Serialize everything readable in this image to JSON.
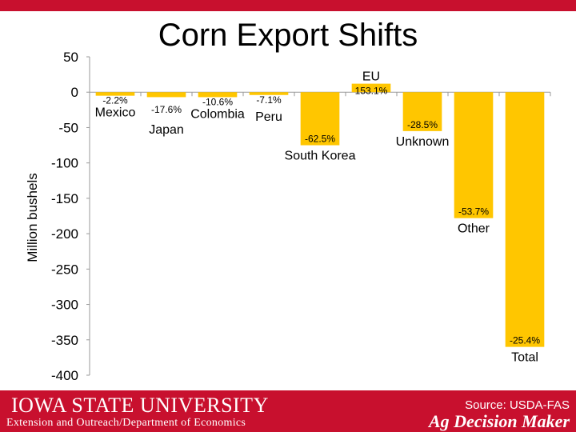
{
  "slide": {
    "title": "Corn Export Shifts"
  },
  "footer": {
    "university": "IOWA STATE UNIVERSITY",
    "department": "Extension and Outreach/Department of Economics",
    "source": "Source: USDA-FAS",
    "brand": "Ag Decision Maker"
  },
  "colors": {
    "bar": "#ffc600",
    "accent": "#c8102e",
    "axis": "#999999"
  },
  "chart_data": {
    "type": "bar",
    "ylabel": "Million bushels",
    "ylim": [
      -400,
      50
    ],
    "yticks": [
      50,
      0,
      -50,
      -100,
      -150,
      -200,
      -250,
      -300,
      -350,
      -400
    ],
    "categories": [
      "Mexico",
      "Japan",
      "Colombia",
      "Peru",
      "South Korea",
      "EU",
      "Unknown",
      "Other",
      "Total"
    ],
    "values": [
      -5,
      -7,
      -7,
      -4,
      -75,
      12,
      -55,
      -178,
      -360
    ],
    "data_labels": [
      "-2.2%",
      "-17.6%",
      "-10.6%",
      "-7.1%",
      "-62.5%",
      "153.1%",
      "-28.5%",
      "-53.7%",
      "-25.4%"
    ],
    "grid": false,
    "legend": "none"
  }
}
